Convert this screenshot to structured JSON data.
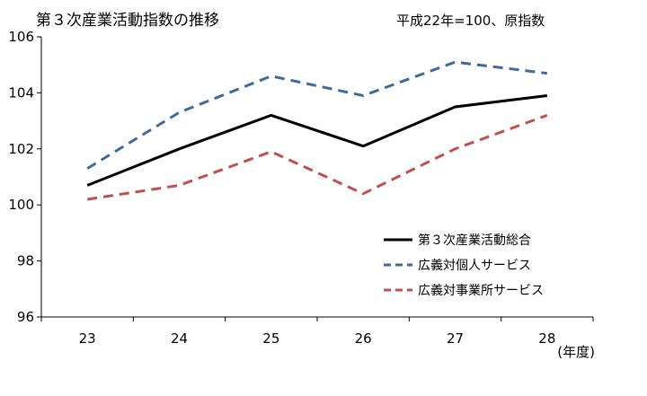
{
  "chart_data": {
    "type": "line",
    "title": "第３次産業活動指数の推移",
    "subtitle": "平成22年=100、原指数",
    "xlabel": "(年度)",
    "ylabel": "",
    "categories": [
      "23",
      "24",
      "25",
      "26",
      "27",
      "28"
    ],
    "ylim": [
      96,
      106
    ],
    "yticks": [
      "96",
      "98",
      "100",
      "102",
      "104",
      "106"
    ],
    "grid": false,
    "legend_position": "bottom-right",
    "series": [
      {
        "name": "第３次産業活動総合",
        "values": [
          100.7,
          102.0,
          103.2,
          102.1,
          103.5,
          103.9
        ],
        "color": "#000000",
        "style": "solid"
      },
      {
        "name": "広義対個人サービス",
        "values": [
          101.3,
          103.3,
          104.6,
          103.9,
          105.1,
          104.7
        ],
        "color": "#3F6A9A",
        "style": "dashed"
      },
      {
        "name": "広義対事業所サービス",
        "values": [
          100.2,
          100.7,
          101.9,
          100.4,
          102.0,
          103.2
        ],
        "color": "#C0504D",
        "style": "dashed"
      }
    ]
  }
}
